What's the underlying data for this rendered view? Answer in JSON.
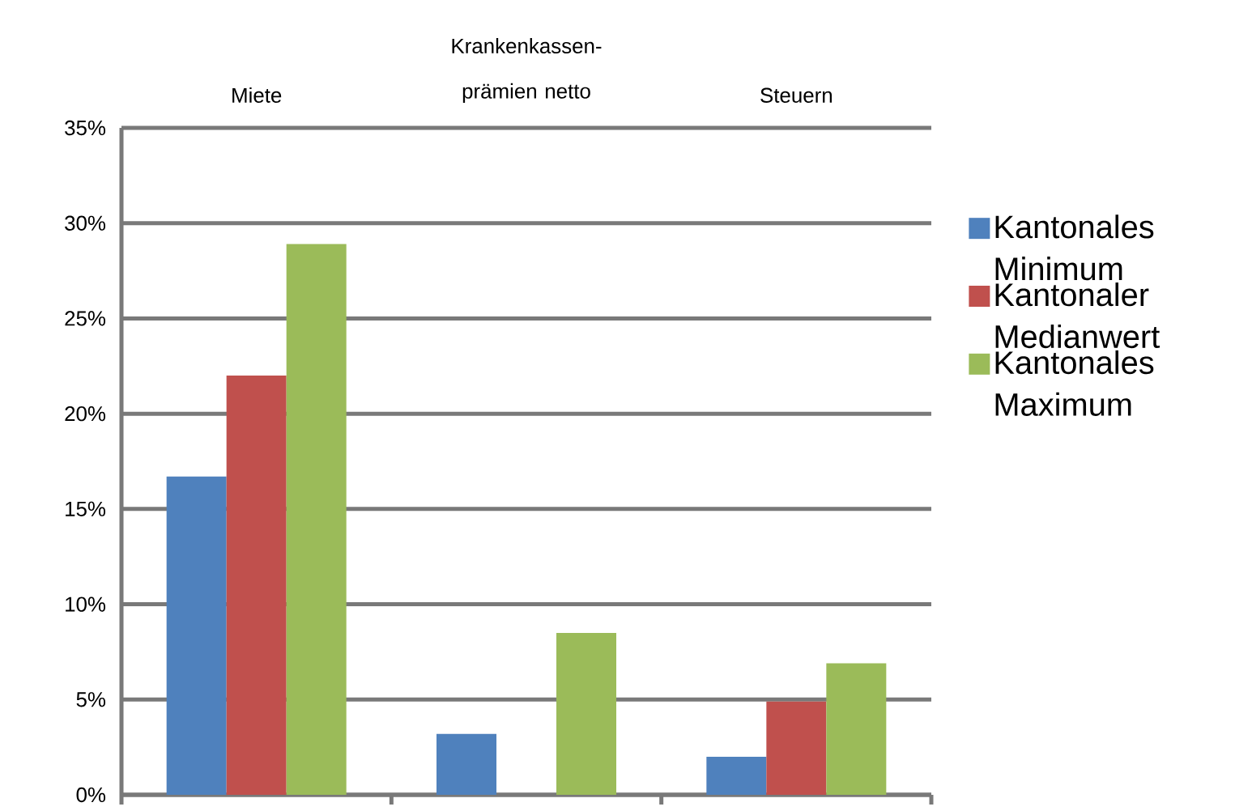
{
  "chart_data": {
    "type": "bar",
    "categories": [
      "Miete",
      "Krankenkassen-prämien netto",
      "Steuern"
    ],
    "series": [
      {
        "name": "Kantonales Minimum",
        "color": "#4f81bd",
        "values": [
          16.7,
          3.2,
          2.0
        ]
      },
      {
        "name": "Kantonaler Medianwert",
        "color": "#c0504d",
        "values": [
          22.0,
          null,
          4.9
        ]
      },
      {
        "name": "Kantonales Maximum",
        "color": "#9bbb59",
        "values": [
          28.9,
          8.5,
          6.9
        ]
      }
    ],
    "ylim": [
      0,
      35
    ],
    "yticks": [
      {
        "value": 0,
        "label": "0%"
      },
      {
        "value": 5,
        "label": "5%"
      },
      {
        "value": 10,
        "label": "10%"
      },
      {
        "value": 15,
        "label": "15%"
      },
      {
        "value": 20,
        "label": "20%"
      },
      {
        "value": 25,
        "label": "25%"
      },
      {
        "value": 30,
        "label": "30%"
      },
      {
        "value": 35,
        "label": "35%"
      }
    ],
    "grid": "y",
    "legend": "right"
  }
}
